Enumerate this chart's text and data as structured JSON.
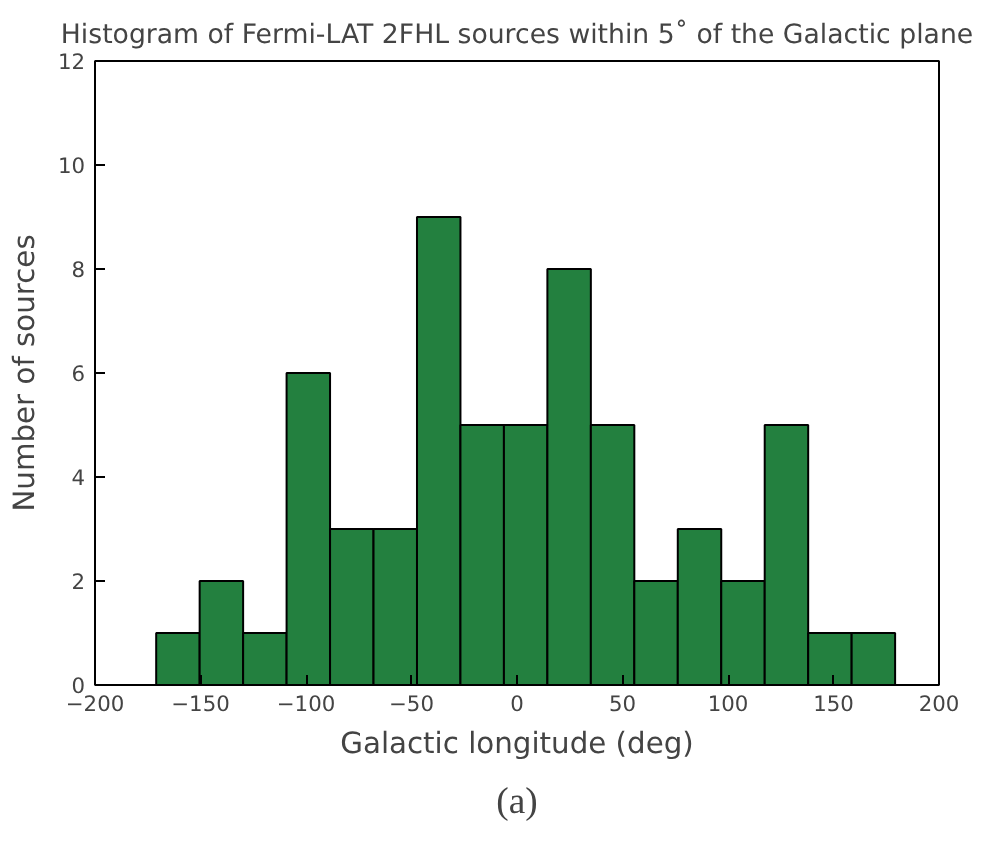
{
  "chart_data": {
    "type": "histogram",
    "title": "Histogram of Fermi-LAT 2FHL sources within 5˚ of the Galactic plane",
    "xlabel": "Galactic longitude (deg)",
    "ylabel": "Number of sources",
    "bins": [
      -171,
      -150.4,
      -129.8,
      -109.2,
      -88.6,
      -68.0,
      -47.4,
      -26.8,
      -6.2,
      14.4,
      35.0,
      55.6,
      76.2,
      96.8,
      117.4,
      138.0,
      158.6,
      179.2
    ],
    "values": [
      1,
      2,
      1,
      6,
      3,
      3,
      9,
      5,
      5,
      8,
      5,
      2,
      3,
      2,
      5,
      1,
      1
    ],
    "color": "#23803f",
    "xlim": [
      -200,
      200
    ],
    "xticks": [
      -200,
      -150,
      -100,
      -50,
      0,
      50,
      100,
      150,
      200
    ],
    "ylim": [
      0,
      12
    ],
    "yticks": [
      0,
      2,
      4,
      6,
      8,
      10,
      12
    ],
    "grid": false,
    "annotations": [
      "(a)"
    ]
  }
}
